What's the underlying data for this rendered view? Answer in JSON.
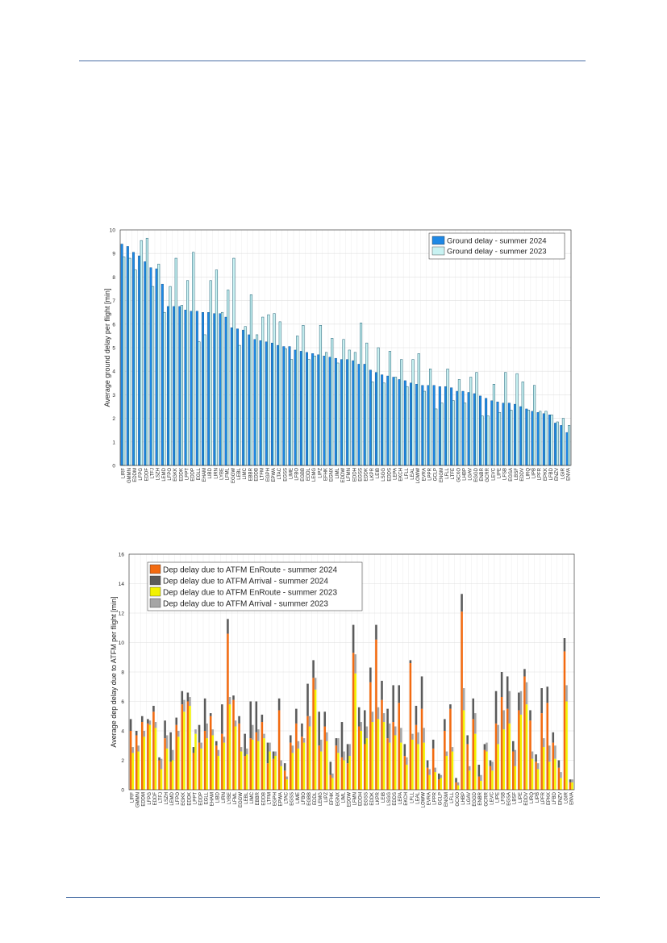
{
  "colors": {
    "rule": "#4a6fa5",
    "ground_2024": "#1e88e5",
    "ground_2023": "#c8f2f2",
    "ground_2023_edge": "#1f5f75",
    "enroute_2024": "#f26a10",
    "arrival_2024": "#5a5a5a",
    "enroute_2023": "#f2f200",
    "arrival_2023": "#a5a5a5"
  },
  "chart_data": [
    {
      "type": "bar",
      "ylabel": "Average ground delay per flight [min]",
      "ylim": [
        0,
        10
      ],
      "yticks": [
        "0",
        "1",
        "2",
        "3",
        "4",
        "5",
        "6",
        "7",
        "8",
        "9",
        "10"
      ],
      "grid": true,
      "legend_position": "top-right",
      "categories": [
        "LIRF",
        "GMMN",
        "EDDM",
        "LFPG",
        "EDDF",
        "LTFJ",
        "LSZH",
        "LEMD",
        "LFPO",
        "EGKK",
        "EDDK",
        "LPPT",
        "EDDP",
        "EGLL",
        "EHAM",
        "LIBD",
        "LIRN",
        "LYBE",
        "LFML",
        "EGGW",
        "LEBL",
        "LIMC",
        "EBBR",
        "EDDB",
        "LTFM",
        "EGPH",
        "EPWA",
        "LTAC",
        "EGSS",
        "LIME",
        "LFBO",
        "EGBB",
        "EDDL",
        "LEMG",
        "LIPZ",
        "EFHK",
        "EGNX",
        "LIML",
        "EDDW",
        "LFMN",
        "EDDH",
        "EGSS",
        "EDDK",
        "LKPR",
        "LEIB",
        "LSGG",
        "EDDS",
        "LEPA",
        "EKCH",
        "LFLL",
        "LEAL",
        "LOWW",
        "EVRA",
        "LPPR",
        "GCLP",
        "ENGM",
        "LFLL",
        "LTFE",
        "GCXO",
        "LHBP",
        "LGAV",
        "EGGD",
        "ENBR",
        "GCRR",
        "LEVC",
        "LIPE",
        "LFSB",
        "EGSA",
        "LBSF",
        "EDDV",
        "LIRQ",
        "LIPB",
        "LPFR",
        "EPKK",
        "LFBD",
        "ENZV",
        "LGIR",
        "ENVA"
      ],
      "series": [
        {
          "name": "Ground delay - summer 2024",
          "values": [
            9.4,
            9.3,
            9.05,
            8.9,
            8.65,
            8.4,
            8.35,
            7.7,
            6.75,
            6.75,
            6.75,
            6.6,
            6.55,
            6.55,
            6.5,
            6.5,
            6.45,
            6.45,
            6.3,
            5.85,
            5.8,
            5.75,
            5.55,
            5.35,
            5.3,
            5.25,
            5.2,
            5.1,
            5.05,
            5.05,
            4.9,
            4.85,
            4.8,
            4.75,
            4.7,
            4.65,
            4.6,
            4.55,
            4.5,
            4.5,
            4.45,
            4.3,
            4.3,
            4.05,
            3.95,
            3.85,
            3.8,
            3.75,
            3.65,
            3.6,
            3.5,
            3.45,
            3.4,
            3.4,
            3.4,
            3.35,
            3.35,
            3.3,
            3.15,
            3.15,
            3.1,
            3.05,
            2.95,
            2.85,
            2.75,
            2.7,
            2.65,
            2.65,
            2.6,
            2.5,
            2.4,
            2.3,
            2.25,
            2.2,
            2.15,
            1.8,
            1.7,
            1.4
          ]
        },
        {
          "name": "Ground delay - summer 2023",
          "values": [
            8.85,
            8.8,
            8.3,
            9.55,
            9.65,
            7.6,
            8.55,
            6.5,
            7.6,
            8.8,
            6.8,
            7.85,
            9.05,
            5.25,
            5.55,
            7.85,
            8.3,
            6.5,
            7.45,
            8.8,
            5.1,
            5.9,
            7.25,
            5.55,
            6.3,
            6.4,
            6.45,
            6.1,
            4.95,
            4.5,
            5.5,
            5.95,
            4.5,
            4.65,
            5.95,
            4.8,
            5.4,
            4.35,
            5.35,
            4.9,
            4.8,
            6.05,
            5.2,
            3.55,
            5.0,
            3.5,
            4.85,
            3.75,
            4.5,
            3.35,
            4.5,
            4.75,
            3.15,
            4.1,
            2.4,
            2.65,
            4.1,
            2.75,
            3.65,
            2.65,
            3.75,
            3.95,
            2.1,
            2.1,
            3.45,
            2.25,
            3.95,
            2.35,
            3.9,
            3.55,
            2.35,
            3.4,
            2.3,
            2.3,
            2.15,
            1.85,
            2.0,
            1.7
          ]
        }
      ]
    },
    {
      "type": "bar",
      "stacked": true,
      "ylabel": "Average dep delay due to ATFM per flight [min]",
      "ylim": [
        0,
        16
      ],
      "yticks": [
        "0",
        "2",
        "4",
        "6",
        "8",
        "10",
        "12",
        "14",
        "16"
      ],
      "grid": true,
      "legend_position": "top-left",
      "categories": [
        "LIRF",
        "GMMN",
        "EDDM",
        "LFPG",
        "EDDF",
        "LTFJ",
        "LSZH",
        "LEMD",
        "LFPO",
        "EGKK",
        "EDDK",
        "LPPT",
        "EDDP",
        "EGLL",
        "EHAM",
        "LIBD",
        "LIRN",
        "LYBE",
        "LFML",
        "EGGW",
        "LEBL",
        "LIMC",
        "EBBR",
        "EDDB",
        "LTFM",
        "EGPH",
        "EPWA",
        "LTAC",
        "EGSS",
        "LIME",
        "LFBO",
        "EGBB",
        "EDDL",
        "LEMG",
        "LIPZ",
        "EFHK",
        "EGNX",
        "LIML",
        "EDDW",
        "LFMN",
        "EDDH",
        "EGSS",
        "EDDK",
        "LKPR",
        "LEIB",
        "LSGG",
        "EDDS",
        "LEPA",
        "EKCH",
        "LFLL",
        "LEAL",
        "LOWW",
        "EVRA",
        "LPPR",
        "GCLP",
        "ENGM",
        "LFLL",
        "GCXO",
        "LHBP",
        "LGAV",
        "EGGD",
        "ENBR",
        "GCRR",
        "LEVC",
        "LIPE",
        "LFSB",
        "EGSA",
        "LBSF",
        "LIPE",
        "EDDV",
        "LIRQ",
        "LIPB",
        "LPFR",
        "EPKK",
        "LFBD",
        "ENZV",
        "LGIR",
        "ENVA"
      ],
      "series": [
        {
          "name": "Dep delay due to ATFM EnRoute - summer 2024",
          "stack": "2024",
          "values": [
            4.0,
            3.7,
            4.6,
            4.5,
            5.3,
            2.0,
            3.5,
            1.9,
            4.4,
            5.8,
            6.0,
            2.5,
            3.2,
            4.0,
            5.0,
            3.0,
            3.8,
            10.6,
            6.1,
            4.5,
            2.3,
            3.5,
            3.9,
            4.6,
            1.8,
            2.1,
            5.4,
            1.3,
            3.2,
            4.5,
            3.6,
            5.0,
            7.6,
            3.0,
            4.3,
            1.0,
            3.0,
            2.2,
            1.8,
            9.3,
            4.3,
            3.1,
            7.3,
            10.2,
            6.1,
            3.5,
            4.6,
            5.9,
            2.3,
            8.6,
            4.4,
            5.5,
            1.5,
            2.8,
            0.7,
            4.0,
            5.5,
            0.5,
            12.1,
            3.1,
            4.8,
            0.9,
            2.7,
            1.6,
            4.5,
            6.3,
            5.5,
            2.6,
            5.4,
            7.7,
            4.7,
            1.9,
            5.2,
            5.9,
            3.2,
            1.5,
            9.4,
            0.5
          ]
        },
        {
          "name": "Dep delay due to ATFM Arrival - summer 2024",
          "stack": "2024",
          "values": [
            0.8,
            0.3,
            0.4,
            0.3,
            0.4,
            0.2,
            1.2,
            2.0,
            0.5,
            0.9,
            0.6,
            0.4,
            1.2,
            2.2,
            0.2,
            0.3,
            2.0,
            1.0,
            0.3,
            0.5,
            1.5,
            2.5,
            2.1,
            0.5,
            1.4,
            0.5,
            0.8,
            0.5,
            0.5,
            1.0,
            0.9,
            2.2,
            1.2,
            2.3,
            1.0,
            0.9,
            0.5,
            2.4,
            1.3,
            1.9,
            1.3,
            2.3,
            1.0,
            1.0,
            1.3,
            2.0,
            2.5,
            1.2,
            0.8,
            0.2,
            1.3,
            2.2,
            0.5,
            0.6,
            0.4,
            0.8,
            0.3,
            0.3,
            1.2,
            0.6,
            1.4,
            0.8,
            0.4,
            0.4,
            2.2,
            1.7,
            2.2,
            0.7,
            1.2,
            0.5,
            0.7,
            0.5,
            1.7,
            1.1,
            0.7,
            0.5,
            0.9,
            0.2
          ]
        },
        {
          "name": "Dep delay due to ATFM EnRoute - summer 2023",
          "stack": "2023",
          "values": [
            2.5,
            2.6,
            3.6,
            4.4,
            4.2,
            1.4,
            2.8,
            2.0,
            3.6,
            5.3,
            5.7,
            3.8,
            2.8,
            3.5,
            3.7,
            2.3,
            3.2,
            5.8,
            4.3,
            2.6,
            2.4,
            3.4,
            3.3,
            3.5,
            2.6,
            2.3,
            1.6,
            0.7,
            2.5,
            2.8,
            3.2,
            4.3,
            6.8,
            2.6,
            3.3,
            0.8,
            2.5,
            2.0,
            2.3,
            7.9,
            4.0,
            3.5,
            4.6,
            4.8,
            4.6,
            3.2,
            3.7,
            3.2,
            1.7,
            3.4,
            3.1,
            3.2,
            1.0,
            1.2,
            0.8,
            2.3,
            2.6,
            0.3,
            5.4,
            1.3,
            3.8,
            0.6,
            2.6,
            1.3,
            3.1,
            4.1,
            4.5,
            1.6,
            5.1,
            5.8,
            2.1,
            1.4,
            2.9,
            1.9,
            2.1,
            0.8,
            6.0,
            0.5
          ]
        },
        {
          "name": "Dep delay due to ATFM Arrival - summer 2023",
          "stack": "2023",
          "values": [
            0.4,
            0.4,
            0.4,
            0.3,
            0.4,
            0.7,
            0.9,
            0.7,
            0.4,
            0.8,
            0.6,
            0.3,
            0.4,
            1.0,
            0.4,
            0.4,
            0.4,
            0.5,
            0.4,
            0.3,
            0.4,
            1.0,
            0.8,
            0.3,
            0.6,
            0.3,
            0.4,
            0.2,
            0.5,
            0.5,
            0.3,
            0.7,
            0.8,
            0.8,
            0.6,
            0.3,
            1.0,
            0.6,
            0.8,
            1.3,
            0.6,
            0.8,
            0.7,
            0.8,
            0.6,
            1.3,
            0.6,
            1.0,
            0.5,
            0.4,
            0.8,
            1.0,
            0.4,
            0.3,
            0.2,
            0.3,
            0.3,
            0.2,
            1.5,
            0.3,
            1.4,
            0.4,
            0.6,
            0.6,
            1.3,
            1.3,
            2.2,
            1.1,
            1.6,
            1.5,
            0.5,
            0.4,
            0.6,
            1.1,
            0.9,
            0.4,
            1.1,
            0.2
          ]
        }
      ]
    }
  ]
}
